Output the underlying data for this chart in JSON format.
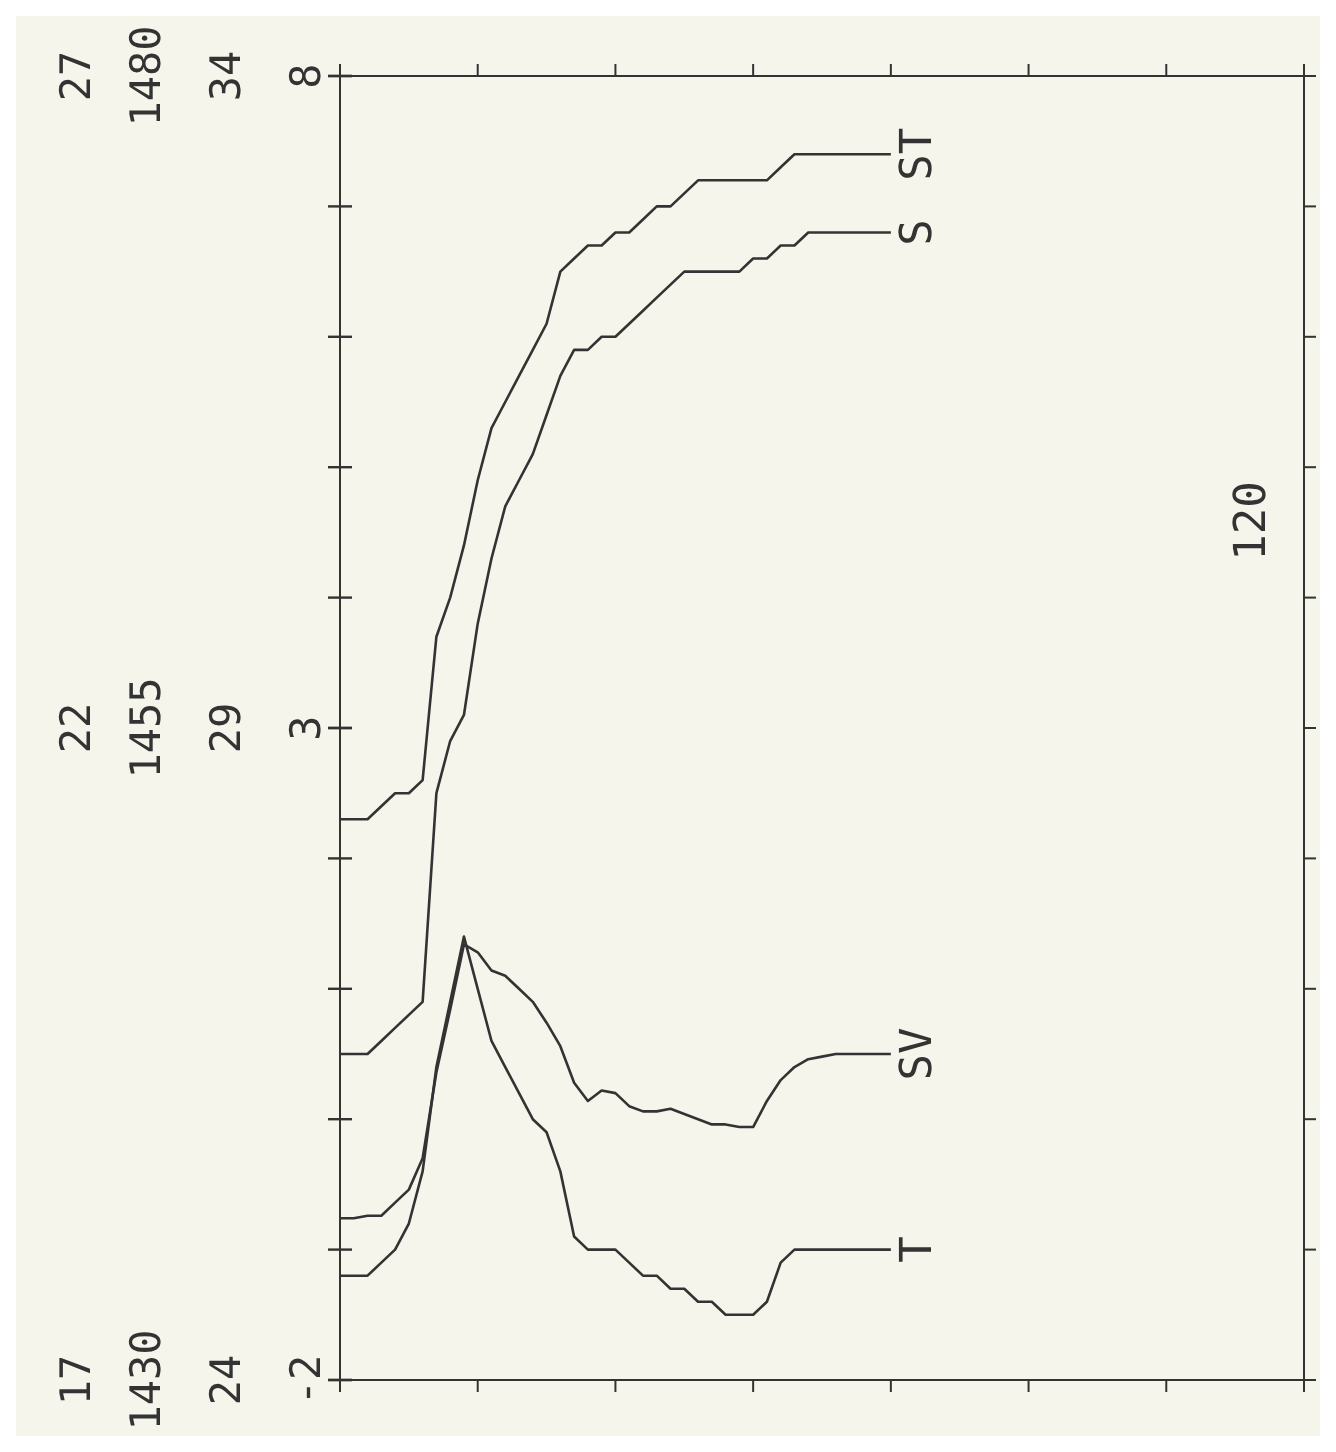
{
  "chart_data": [
    {
      "type": "line",
      "categories": [
        null,
        null,
        null,
        null,
        null,
        null,
        null,
        null,
        null,
        null,
        null,
        null,
        null,
        null,
        null,
        null,
        null,
        null,
        null,
        null,
        null,
        null,
        null,
        null,
        null,
        null,
        null,
        null,
        null,
        null,
        null,
        null,
        null,
        null,
        null,
        null,
        null,
        null,
        null,
        null,
        null,
        null,
        null,
        null,
        null,
        null,
        null,
        null,
        null,
        null,
        null,
        null,
        null,
        null,
        null,
        null,
        null,
        null,
        null,
        null,
        null,
        null,
        null,
        null,
        null,
        null,
        null,
        null,
        null,
        null,
        null
      ],
      "series": [
        {
          "name": "T",
          "color": "#333333",
          "values": [
            17.8,
            17.8,
            17.8,
            17.9,
            18.0,
            18.2,
            18.6,
            19.4,
            19.9,
            20.4,
            20.0,
            19.6,
            19.4,
            19.2,
            19.0,
            18.9,
            18.6,
            18.1,
            18.0,
            18.0,
            18.0,
            17.9,
            17.8,
            17.8,
            17.7,
            17.7,
            17.6,
            17.6,
            17.5,
            17.5,
            17.5,
            17.6,
            17.9,
            18.0,
            18.0,
            18.0,
            18.0,
            18.0,
            18.0,
            18.0,
            18.0,
            null,
            null,
            null,
            null,
            null,
            null,
            null,
            null,
            null,
            null,
            null,
            null,
            null,
            null,
            null,
            null,
            null,
            null,
            null,
            null,
            null,
            null,
            null,
            null,
            null,
            null,
            null,
            null,
            null,
            null
          ]
        },
        {
          "name": "SV",
          "color": "#333333",
          "axis": "y2",
          "values": [
            1436.2,
            1436.2,
            1436.3,
            1436.3,
            1436.8,
            1437.3,
            1438.5,
            1441.8,
            1444.2,
            1446.7,
            1446.4,
            1445.7,
            1445.5,
            1445.0,
            1444.5,
            1443.7,
            1442.8,
            1441.4,
            1440.7,
            1441.1,
            1441.0,
            1440.5,
            1440.3,
            1440.3,
            1440.4,
            1440.2,
            1440.0,
            1439.8,
            1439.8,
            1439.7,
            1439.7,
            1440.7,
            1441.5,
            1442.0,
            1442.3,
            1442.4,
            1442.5,
            1442.5,
            1442.5,
            1442.5,
            1442.5,
            null,
            null,
            null,
            null,
            null,
            null,
            null,
            null,
            null,
            null,
            null,
            null,
            null,
            null,
            null,
            null,
            null,
            null,
            null,
            null,
            null,
            null,
            null,
            null,
            null,
            null,
            null,
            null,
            null,
            null
          ]
        },
        {
          "name": "S",
          "color": "#333333",
          "axis": "y3",
          "values": [
            26.5,
            26.5,
            26.5,
            26.6,
            26.7,
            26.8,
            26.9,
            28.5,
            28.9,
            29.1,
            29.8,
            30.3,
            30.7,
            30.9,
            31.1,
            31.4,
            31.7,
            31.9,
            31.9,
            32.0,
            32.0,
            32.1,
            32.2,
            32.3,
            32.4,
            32.5,
            32.5,
            32.5,
            32.5,
            32.5,
            32.6,
            32.6,
            32.7,
            32.7,
            32.8,
            32.8,
            32.8,
            32.8,
            32.8,
            32.8,
            32.8,
            null,
            null,
            null,
            null,
            null,
            null,
            null,
            null,
            null,
            null,
            null,
            null,
            null,
            null,
            null,
            null,
            null,
            null,
            null,
            null,
            null,
            null,
            null,
            null,
            null,
            null,
            null,
            null,
            null,
            null
          ]
        }
      ],
      "ylim": [
        17,
        27
      ],
      "yticks": [
        17,
        {
          "value": 18,
          "label": null
        },
        {
          "value": 19,
          "label": null
        },
        {
          "value": 20,
          "label": null
        },
        {
          "value": 21,
          "label": null
        },
        22,
        {
          "value": 23,
          "label": null
        },
        {
          "value": 24,
          "label": null
        },
        {
          "value": 25,
          "label": null
        },
        {
          "value": 26,
          "label": null
        },
        27
      ],
      "y2lim": [
        1430,
        1480
      ],
      "y2ticks": [
        1430,
        1455,
        1480
      ],
      "y3lim": [
        24,
        34
      ],
      "y3ticks": [
        24,
        29,
        34
      ],
      "annotations": [
        "120"
      ],
      "grid": false,
      "legend": false
    },
    {
      "type": "line",
      "categories": [
        null,
        null,
        null,
        null,
        null,
        null,
        null,
        null,
        null,
        null,
        null,
        null,
        null,
        null,
        null,
        null,
        null,
        null,
        null,
        null,
        null,
        null,
        null,
        null,
        null,
        null,
        null,
        null,
        null,
        null,
        null,
        null,
        null,
        null,
        null,
        null,
        null,
        null,
        null,
        null,
        null,
        null,
        null,
        null,
        null,
        null,
        null,
        null,
        null,
        null,
        null,
        null,
        null,
        null,
        null,
        null,
        null,
        null,
        null,
        null,
        null,
        null,
        null,
        null,
        null,
        null,
        null,
        null,
        null,
        null,
        null
      ],
      "series": [
        {
          "name": "ST",
          "color": "#333333",
          "values": [
            2.3,
            2.3,
            2.3,
            2.4,
            2.5,
            2.5,
            2.6,
            3.7,
            4.0,
            4.4,
            4.9,
            5.3,
            5.5,
            5.7,
            5.9,
            6.1,
            6.5,
            6.6,
            6.7,
            6.7,
            6.8,
            6.8,
            6.9,
            7.0,
            7.0,
            7.1,
            7.2,
            7.2,
            7.2,
            7.2,
            7.2,
            7.2,
            7.3,
            7.4,
            7.4,
            7.4,
            7.4,
            7.4,
            7.4,
            7.4,
            7.4,
            null,
            null,
            null,
            null,
            null,
            null,
            null,
            null,
            null,
            null,
            null,
            null,
            null,
            null,
            null,
            null,
            null,
            null,
            null,
            null,
            null,
            null,
            null,
            null,
            null,
            null,
            null,
            null,
            null,
            null
          ]
        }
      ],
      "ylim": [
        -2,
        8
      ],
      "yticks": [
        -2,
        3,
        8
      ],
      "tick_labels": "y"
    }
  ]
}
